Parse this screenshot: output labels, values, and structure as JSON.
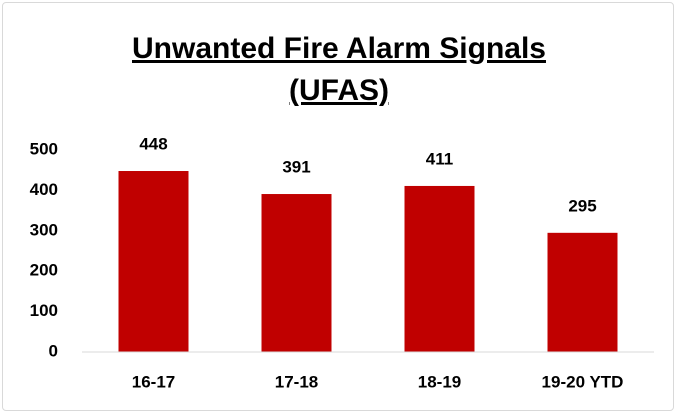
{
  "chart_data": {
    "type": "bar",
    "title": "Unwanted Fire Alarm Signals (UFAS)",
    "categories": [
      "16-17",
      "17-18",
      "18-19",
      "19-20 YTD"
    ],
    "values": [
      448,
      391,
      411,
      295
    ],
    "color": "#c00000",
    "ylim": [
      0,
      500
    ],
    "yticks": [
      0,
      100,
      200,
      300,
      400,
      500
    ],
    "grid": false
  }
}
